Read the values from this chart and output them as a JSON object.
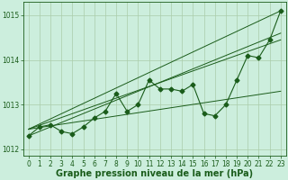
{
  "xlabel": "Graphe pression niveau de la mer (hPa)",
  "bg_color": "#cceedd",
  "line_color": "#1a5c1a",
  "grid_color": "#aaccaa",
  "ylim": [
    1011.85,
    1015.3
  ],
  "xlim": [
    -0.5,
    23.5
  ],
  "yticks": [
    1012,
    1013,
    1014,
    1015
  ],
  "xticks": [
    0,
    1,
    2,
    3,
    4,
    5,
    6,
    7,
    8,
    9,
    10,
    11,
    12,
    13,
    14,
    15,
    16,
    17,
    18,
    19,
    20,
    21,
    22,
    23
  ],
  "hours": [
    0,
    1,
    2,
    3,
    4,
    5,
    6,
    7,
    8,
    9,
    10,
    11,
    12,
    13,
    14,
    15,
    16,
    17,
    18,
    19,
    20,
    21,
    22,
    23
  ],
  "pressure": [
    1012.3,
    1012.5,
    1012.55,
    1012.4,
    1012.35,
    1012.5,
    1012.7,
    1012.85,
    1013.25,
    1012.85,
    1013.0,
    1013.55,
    1013.35,
    1013.35,
    1013.3,
    1013.45,
    1012.8,
    1012.75,
    1013.0,
    1013.55,
    1014.1,
    1014.05,
    1014.45,
    1015.1
  ],
  "trend1_x": [
    0,
    23
  ],
  "trend1_y": [
    1012.45,
    1013.3
  ],
  "trend2_x": [
    0,
    23
  ],
  "trend2_y": [
    1012.45,
    1015.1
  ],
  "trend3_x": [
    0,
    23
  ],
  "trend3_y": [
    1012.3,
    1014.6
  ],
  "trend4_x": [
    0,
    23
  ],
  "trend4_y": [
    1012.45,
    1014.45
  ],
  "marker_size": 2.5,
  "xlabel_fontsize": 7,
  "tick_fontsize": 5.5
}
